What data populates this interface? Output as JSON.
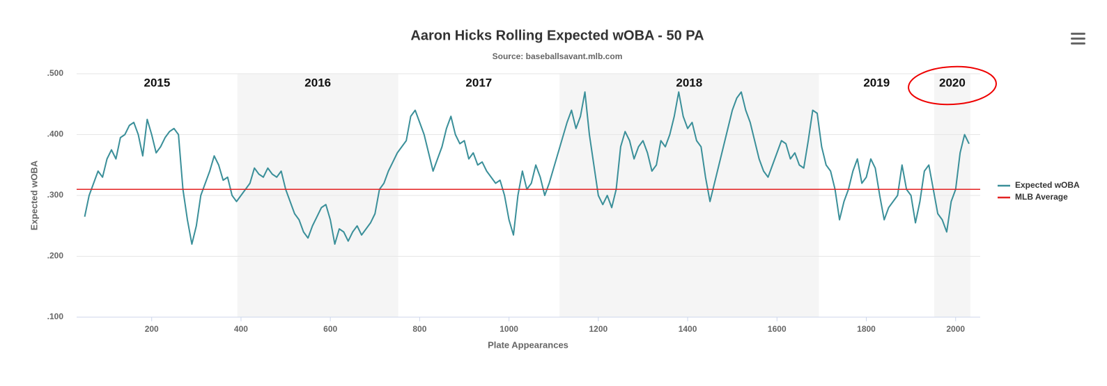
{
  "chart_data": {
    "type": "line",
    "title": "Aaron Hicks Rolling Expected wOBA - 50 PA",
    "subtitle": "Source: baseballsavant.mlb.com",
    "x_label": "Plate Appearances",
    "y_label": "Expected wOBA",
    "xlim": [
      32,
      2055
    ],
    "ylim": [
      0.1,
      0.5
    ],
    "xticks": [
      200,
      400,
      600,
      800,
      1000,
      1200,
      1400,
      1600,
      1800,
      2000
    ],
    "yticks": [
      {
        "value": 0.1,
        "label": ".100"
      },
      {
        "value": 0.2,
        "label": ".200"
      },
      {
        "value": 0.3,
        "label": ".300"
      },
      {
        "value": 0.4,
        "label": ".400"
      },
      {
        "value": 0.5,
        "label": ".500"
      }
    ],
    "grid": true,
    "legend": "right",
    "seasons": [
      {
        "name": "2015",
        "start": 32,
        "end": 392,
        "shaded": false
      },
      {
        "name": "2016",
        "start": 392,
        "end": 752,
        "shaded": true
      },
      {
        "name": "2017",
        "start": 752,
        "end": 1113,
        "shaded": false
      },
      {
        "name": "2018",
        "start": 1113,
        "end": 1694,
        "shaded": true
      },
      {
        "name": "2019",
        "start": 1694,
        "end": 1952,
        "shaded": false
      },
      {
        "name": "2020",
        "start": 1952,
        "end": 2033,
        "shaded": true
      }
    ],
    "x": [
      50,
      60,
      70,
      80,
      90,
      100,
      110,
      120,
      130,
      140,
      150,
      160,
      170,
      180,
      190,
      200,
      210,
      220,
      230,
      240,
      250,
      260,
      270,
      280,
      290,
      300,
      310,
      320,
      330,
      340,
      350,
      360,
      370,
      380,
      390,
      400,
      410,
      420,
      430,
      440,
      450,
      460,
      470,
      480,
      490,
      500,
      510,
      520,
      530,
      540,
      550,
      560,
      570,
      580,
      590,
      600,
      610,
      620,
      630,
      640,
      650,
      660,
      670,
      680,
      690,
      700,
      710,
      720,
      730,
      740,
      750,
      760,
      770,
      780,
      790,
      800,
      810,
      820,
      830,
      840,
      850,
      860,
      870,
      880,
      890,
      900,
      910,
      920,
      930,
      940,
      950,
      960,
      970,
      980,
      990,
      1000,
      1010,
      1020,
      1030,
      1040,
      1050,
      1060,
      1070,
      1080,
      1090,
      1100,
      1110,
      1120,
      1130,
      1140,
      1150,
      1160,
      1170,
      1180,
      1190,
      1200,
      1210,
      1220,
      1230,
      1240,
      1250,
      1260,
      1270,
      1280,
      1290,
      1300,
      1310,
      1320,
      1330,
      1340,
      1350,
      1360,
      1370,
      1380,
      1390,
      1400,
      1410,
      1420,
      1430,
      1440,
      1450,
      1460,
      1470,
      1480,
      1490,
      1500,
      1510,
      1520,
      1530,
      1540,
      1550,
      1560,
      1570,
      1580,
      1590,
      1600,
      1610,
      1620,
      1630,
      1640,
      1650,
      1660,
      1670,
      1680,
      1690,
      1700,
      1710,
      1720,
      1730,
      1740,
      1750,
      1760,
      1770,
      1780,
      1790,
      1800,
      1810,
      1820,
      1830,
      1840,
      1850,
      1860,
      1870,
      1880,
      1890,
      1900,
      1910,
      1920,
      1930,
      1940,
      1950,
      1960,
      1970,
      1980,
      1990,
      2000,
      2010,
      2020,
      2030
    ],
    "series": [
      {
        "name": "Expected wOBA",
        "color": "#3a8f99",
        "values": [
          0.265,
          0.3,
          0.32,
          0.34,
          0.33,
          0.36,
          0.375,
          0.36,
          0.395,
          0.4,
          0.415,
          0.42,
          0.4,
          0.365,
          0.425,
          0.4,
          0.37,
          0.38,
          0.395,
          0.405,
          0.41,
          0.4,
          0.31,
          0.26,
          0.22,
          0.25,
          0.3,
          0.32,
          0.34,
          0.365,
          0.35,
          0.325,
          0.33,
          0.3,
          0.29,
          0.3,
          0.31,
          0.32,
          0.345,
          0.335,
          0.33,
          0.345,
          0.335,
          0.33,
          0.34,
          0.31,
          0.29,
          0.27,
          0.26,
          0.24,
          0.23,
          0.25,
          0.265,
          0.28,
          0.285,
          0.26,
          0.22,
          0.245,
          0.24,
          0.225,
          0.24,
          0.25,
          0.235,
          0.245,
          0.255,
          0.27,
          0.31,
          0.32,
          0.34,
          0.355,
          0.37,
          0.38,
          0.39,
          0.43,
          0.44,
          0.42,
          0.4,
          0.37,
          0.34,
          0.36,
          0.38,
          0.41,
          0.43,
          0.4,
          0.385,
          0.39,
          0.36,
          0.37,
          0.35,
          0.355,
          0.34,
          0.33,
          0.32,
          0.325,
          0.3,
          0.26,
          0.235,
          0.3,
          0.34,
          0.31,
          0.32,
          0.35,
          0.33,
          0.3,
          0.32,
          0.345,
          0.37,
          0.395,
          0.42,
          0.44,
          0.41,
          0.43,
          0.47,
          0.4,
          0.35,
          0.3,
          0.285,
          0.3,
          0.28,
          0.31,
          0.38,
          0.405,
          0.39,
          0.36,
          0.38,
          0.39,
          0.37,
          0.34,
          0.35,
          0.39,
          0.38,
          0.4,
          0.43,
          0.47,
          0.43,
          0.41,
          0.42,
          0.39,
          0.38,
          0.33,
          0.29,
          0.32,
          0.35,
          0.38,
          0.41,
          0.44,
          0.46,
          0.47,
          0.44,
          0.42,
          0.39,
          0.36,
          0.34,
          0.33,
          0.35,
          0.37,
          0.39,
          0.385,
          0.36,
          0.37,
          0.35,
          0.345,
          0.39,
          0.44,
          0.435,
          0.38,
          0.35,
          0.34,
          0.31,
          0.26,
          0.29,
          0.31,
          0.34,
          0.36,
          0.32,
          0.33,
          0.36,
          0.345,
          0.3,
          0.26,
          0.28,
          0.29,
          0.3,
          0.35,
          0.31,
          0.3,
          0.255,
          0.29,
          0.34,
          0.35,
          0.31,
          0.27,
          0.26,
          0.24,
          0.29,
          0.31,
          0.37,
          0.4,
          0.385
        ]
      },
      {
        "name": "MLB Average",
        "color": "#e32222",
        "value": 0.31
      }
    ]
  }
}
